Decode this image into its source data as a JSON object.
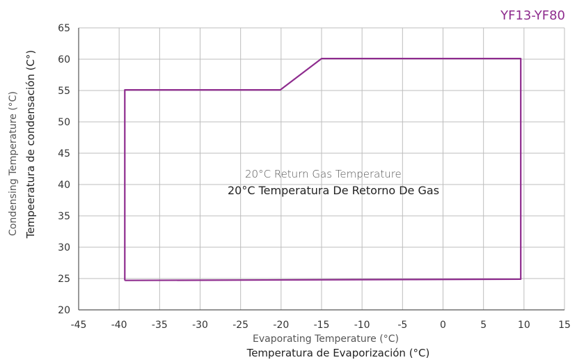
{
  "chart_data": {
    "type": "line",
    "model_label": "YF13-YF80",
    "xlim": [
      -45,
      15
    ],
    "ylim": [
      20,
      65
    ],
    "x_ticks": [
      -45,
      -40,
      -35,
      -30,
      -25,
      -20,
      -15,
      -10,
      -5,
      0,
      5,
      10,
      15
    ],
    "y_ticks": [
      20,
      25,
      30,
      35,
      40,
      45,
      50,
      55,
      60,
      65
    ],
    "x_tick_labels": [
      "-45",
      "-40",
      "-35",
      "-30",
      "-25",
      "-20",
      "-15",
      "-10",
      "-5",
      "0",
      "5",
      "10",
      "15"
    ],
    "y_tick_labels": [
      "20",
      "25",
      "30",
      "35",
      "40",
      "45",
      "50",
      "55",
      "60",
      "65"
    ],
    "xlabel_en": "Evaporating Temperature (°C)",
    "xlabel_es": "Temperatura de Evaporización (°C)",
    "ylabel_en": "Condensing Temperature (°C)",
    "ylabel_es": "Tempeeratura de condensación (C°)",
    "annotation_en": "20°C Return Gas Temperature",
    "annotation_es": "20°C Temperatura De Retorno De Gas",
    "grid": true,
    "series": [
      {
        "color": "#8e2c8e",
        "points": [
          {
            "x": -39.3,
            "y": 24.7
          },
          {
            "x": -39.3,
            "y": 55.1
          },
          {
            "x": -20.1,
            "y": 55.1
          },
          {
            "x": -15.0,
            "y": 60.1
          },
          {
            "x": 9.6,
            "y": 60.1
          },
          {
            "x": 9.6,
            "y": 24.9
          },
          {
            "x": -39.3,
            "y": 24.7
          }
        ]
      }
    ]
  }
}
